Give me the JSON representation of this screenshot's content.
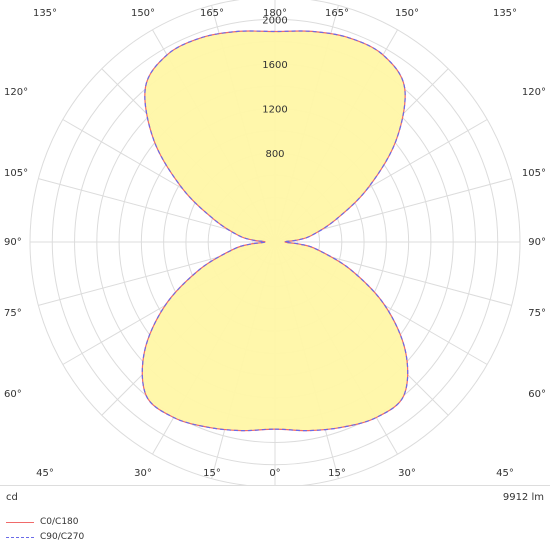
{
  "chart_data": {
    "type": "polar",
    "unit": "cd",
    "flux_label": "9912 lm",
    "radial_ticks": [
      800,
      1200,
      1600,
      2000
    ],
    "r_max": 2200,
    "angle_labels_top": [
      "135°",
      "150°",
      "165°",
      "180°",
      "165°",
      "150°",
      "135°"
    ],
    "angle_labels_bottom": [
      "45°",
      "30°",
      "15°",
      "0°",
      "15°",
      "30°",
      "45°"
    ],
    "side_labels": [
      "120°",
      "105°",
      "90°",
      "75°",
      "60°"
    ],
    "series": [
      {
        "name": "C0/C180",
        "color": "#f06a6a",
        "dash": "solid",
        "gamma": [
          0,
          10,
          20,
          30,
          40,
          50,
          60,
          70,
          80,
          85,
          90,
          95,
          100,
          110,
          120,
          130,
          140,
          150,
          160,
          170,
          180
        ],
        "intensity": [
          1680,
          1720,
          1770,
          1820,
          1800,
          1530,
          1140,
          720,
          380,
          225,
          90,
          200,
          330,
          575,
          960,
          1420,
          1810,
          1940,
          1950,
          1920,
          1890
        ]
      },
      {
        "name": "C90/C270",
        "color": "#6a6ae8",
        "dash": "dashed",
        "gamma": [
          0,
          10,
          20,
          30,
          40,
          50,
          60,
          70,
          80,
          85,
          90,
          95,
          100,
          110,
          120,
          130,
          140,
          150,
          160,
          170,
          180
        ],
        "intensity": [
          1680,
          1720,
          1770,
          1820,
          1800,
          1530,
          1140,
          720,
          380,
          225,
          90,
          200,
          330,
          575,
          960,
          1420,
          1810,
          1940,
          1950,
          1920,
          1890
        ]
      }
    ]
  }
}
